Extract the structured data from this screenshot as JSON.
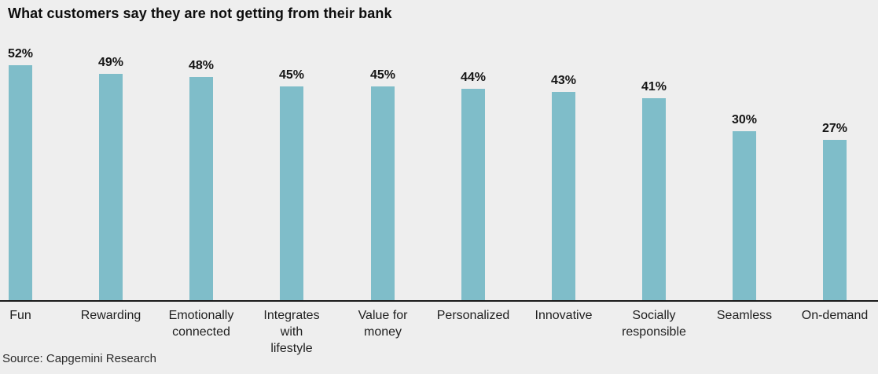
{
  "chart": {
    "title": "What customers say they are not getting from their bank",
    "source": "Source: Capgemini Research"
  },
  "chart_data": {
    "type": "bar",
    "title": "What customers say they are not getting from their bank",
    "categories": [
      "Fun",
      "Rewarding",
      "Emotionally connected",
      "Integrates with lifestyle",
      "Value for money",
      "Personalized",
      "Innovative",
      "Socially responsible",
      "Seamless",
      "On-demand"
    ],
    "values": [
      52,
      49,
      48,
      45,
      45,
      44,
      43,
      41,
      30,
      27
    ],
    "value_labels": [
      "52%",
      "49%",
      "48%",
      "45%",
      "45%",
      "44%",
      "43%",
      "41%",
      "30%",
      "27%"
    ],
    "category_label_lines": [
      [
        "Fun"
      ],
      [
        "Rewarding"
      ],
      [
        "Emotionally",
        "connected"
      ],
      [
        "Integrates",
        "with",
        "lifestyle"
      ],
      [
        "Value for",
        "money"
      ],
      [
        "Personalized"
      ],
      [
        "Innovative"
      ],
      [
        "Socially",
        "responsible"
      ],
      [
        "Seamless"
      ],
      [
        "On-demand"
      ]
    ],
    "value_suffix": "%",
    "bar_color": "#7FBDC9",
    "background_color": "#EEEEEE",
    "axis_color": "#1A1A1A",
    "grid": false,
    "value_axis_visible": false,
    "legend_position": "none",
    "source": "Source: Capgemini Research"
  }
}
